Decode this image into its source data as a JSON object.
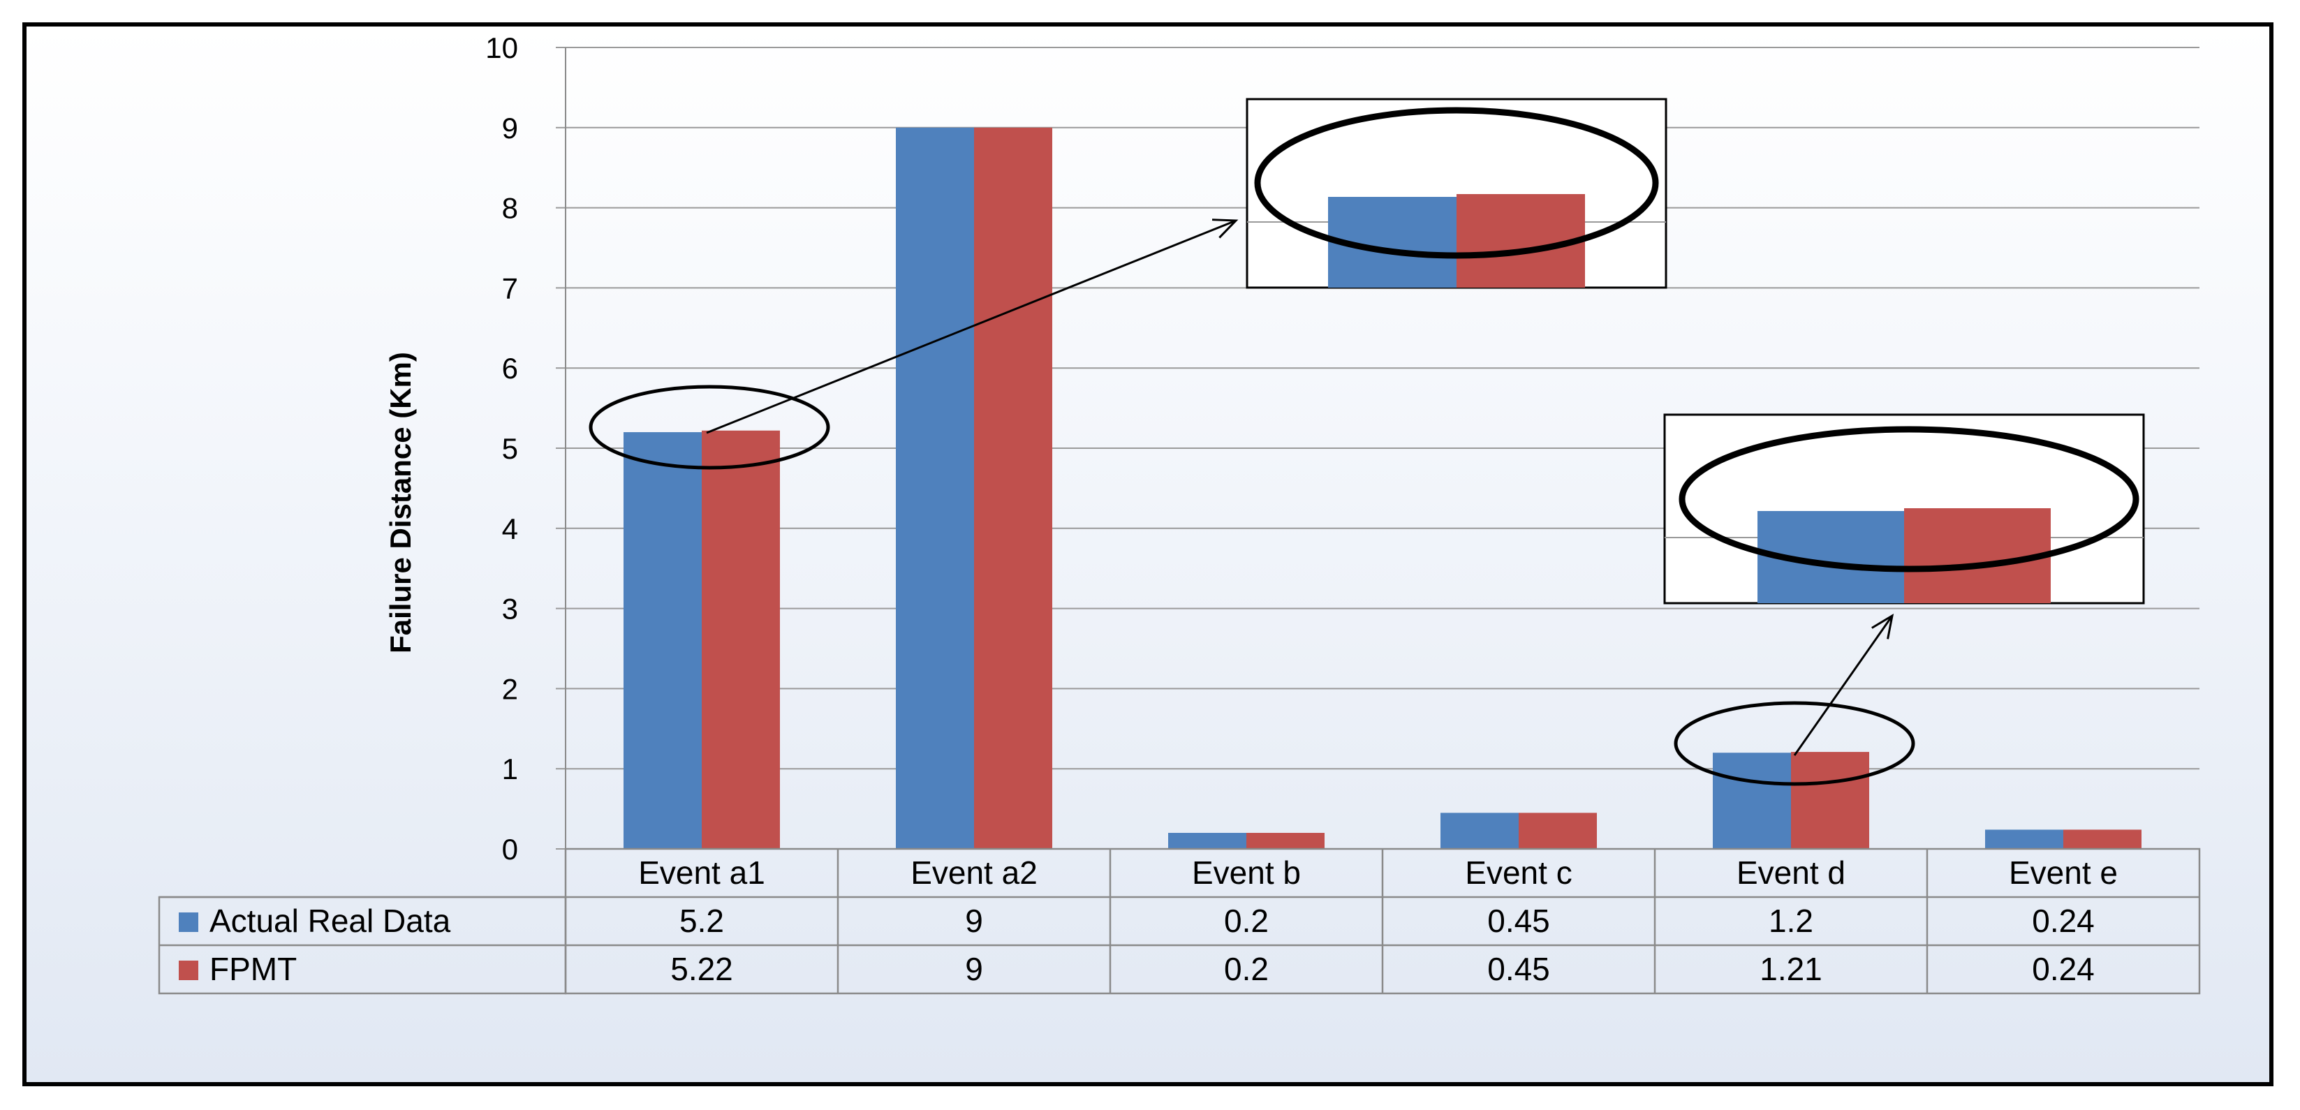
{
  "chart_data": {
    "type": "bar",
    "categories": [
      "Event a1",
      "Event a2",
      "Event b",
      "Event c",
      "Event d",
      "Event e"
    ],
    "series": [
      {
        "name": "Actual Real Data",
        "values": [
          5.2,
          9,
          0.2,
          0.45,
          1.2,
          0.24
        ],
        "color": "#4F81BD"
      },
      {
        "name": "FPMT",
        "values": [
          5.22,
          9,
          0.2,
          0.45,
          1.21,
          0.24
        ],
        "color": "#C0504D"
      }
    ],
    "title": "",
    "xlabel": "",
    "ylabel": "Failure Distance (Km)",
    "ylim": [
      0,
      10
    ],
    "yticks": [
      "0",
      "1",
      "2",
      "3",
      "4",
      "5",
      "6",
      "7",
      "8",
      "9",
      "10"
    ],
    "grid": true,
    "legend": "data-table-left",
    "data_table": {
      "rows": [
        {
          "label": "Actual Real Data",
          "values": [
            "5.2",
            "9",
            "0.2",
            "0.45",
            "1.2",
            "0.24"
          ]
        },
        {
          "label": "FPMT",
          "values": [
            "5.22",
            "9",
            "0.2",
            "0.45",
            "1.21",
            "0.24"
          ]
        }
      ]
    },
    "annotations": [
      "zoom-inset-event-a1",
      "zoom-inset-event-d"
    ]
  }
}
